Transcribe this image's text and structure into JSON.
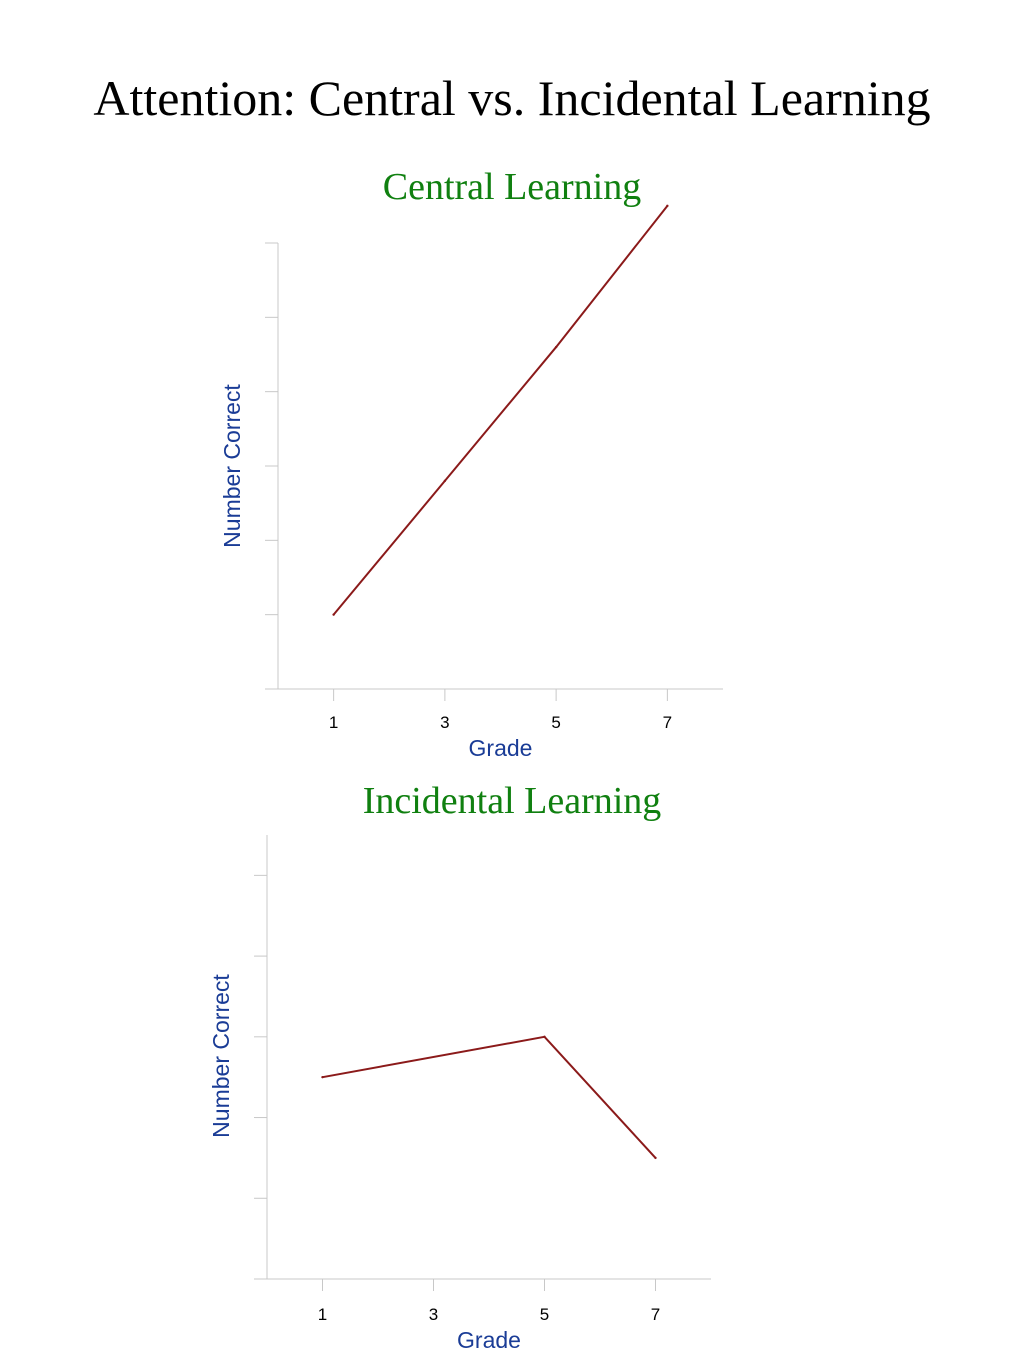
{
  "page": {
    "title": "Attention: Central vs. Incidental Learning"
  },
  "colors": {
    "chart_title": "#108010",
    "axis_label": "#1a3c96",
    "line": "#8b1a1a",
    "axis": "#c8c8c8"
  },
  "chart_data": [
    {
      "type": "line",
      "title": "Central Learning",
      "xlabel": "Grade",
      "ylabel": "Number Correct",
      "x": [
        1,
        3,
        5,
        7
      ],
      "series": [
        {
          "values": [
            1.0,
            2.8,
            4.6,
            6.5
          ]
        }
      ],
      "xticks": [
        "1",
        "3",
        "5",
        "7"
      ],
      "xlim": [
        0,
        8
      ],
      "ylim": [
        0,
        6
      ],
      "yticks": [
        0,
        1,
        2,
        3,
        4,
        5,
        6
      ],
      "ytick_labels_shown": false,
      "grid": false,
      "legend": "none"
    },
    {
      "type": "line",
      "title": "Incidental Learning",
      "xlabel": "Grade",
      "ylabel": "Number Correct",
      "x": [
        1,
        5,
        7
      ],
      "series": [
        {
          "values": [
            2.5,
            3.0,
            1.5
          ]
        }
      ],
      "xticks": [
        "1",
        "3",
        "5",
        "7"
      ],
      "xlim": [
        0,
        8
      ],
      "ylim": [
        0,
        5.5
      ],
      "yticks": [
        1,
        2,
        3,
        4,
        5
      ],
      "ytick_labels_shown": false,
      "grid": false,
      "legend": "none"
    }
  ]
}
